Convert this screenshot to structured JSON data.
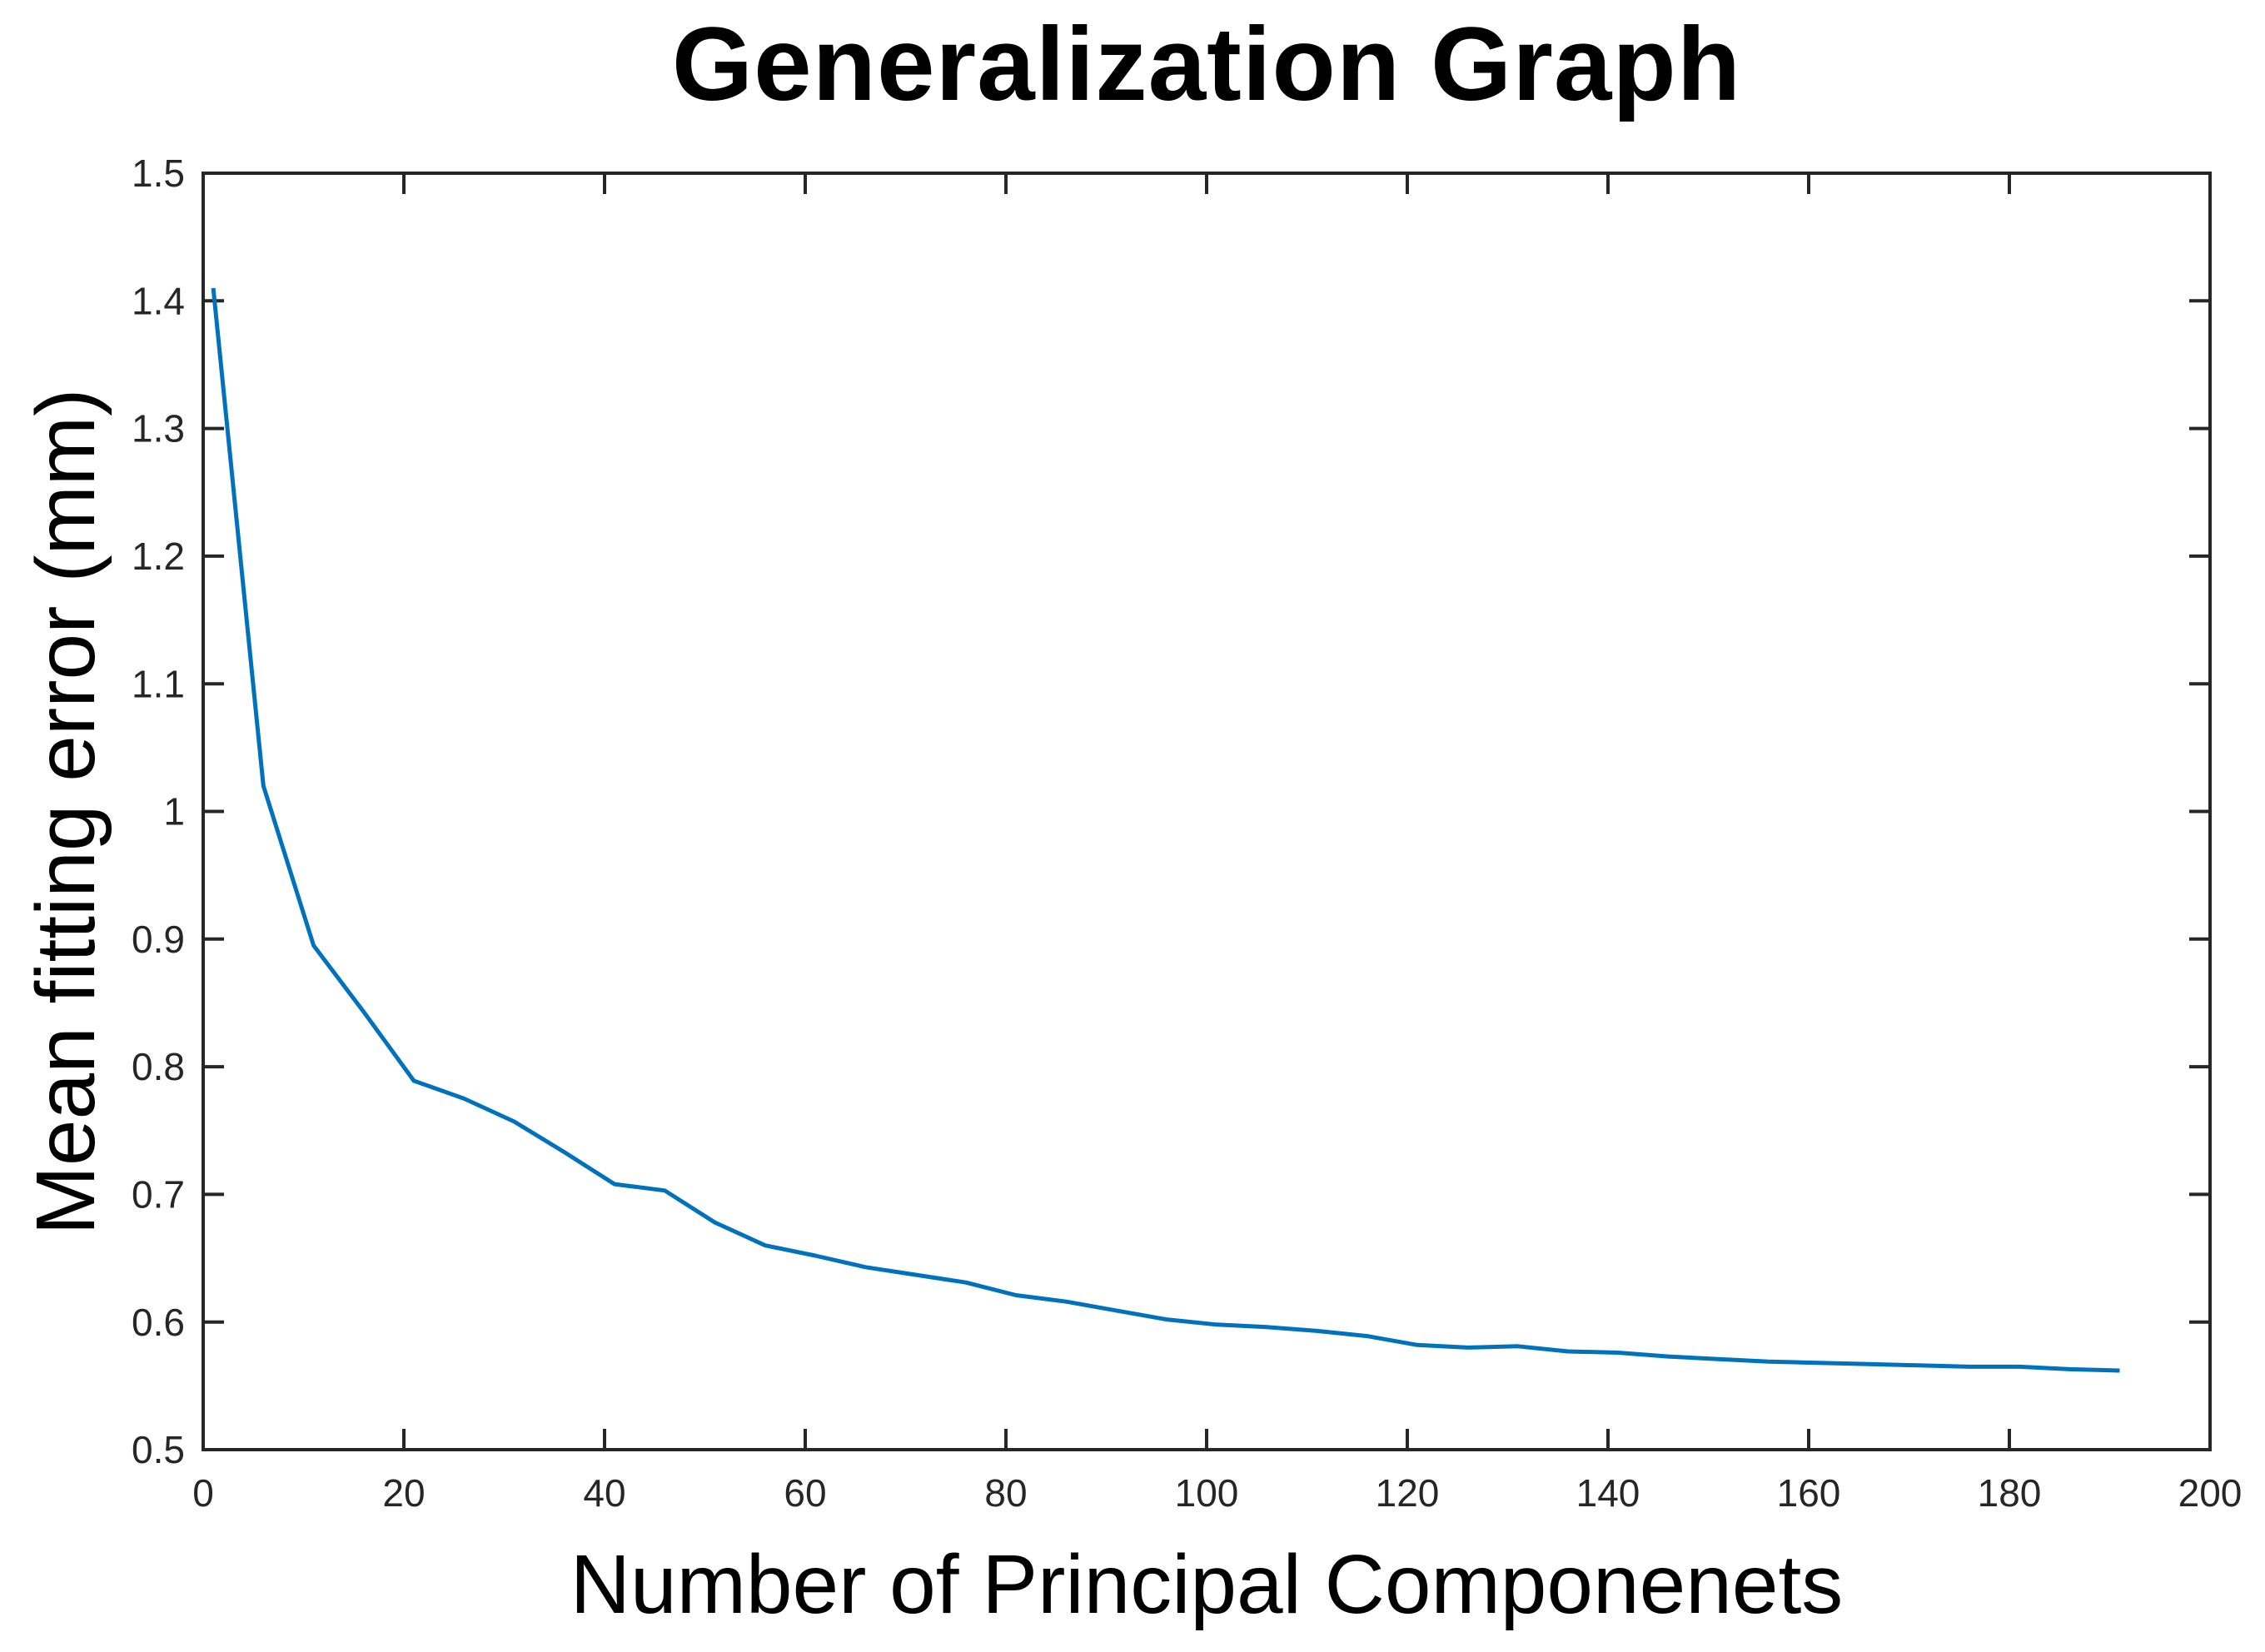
{
  "figure": {
    "background": "#ffffff"
  },
  "chart_data": {
    "type": "line",
    "title": "Generalization Graph",
    "xlabel": "Number of Principal Componenets",
    "ylabel": "Mean fitting error (mm)",
    "xlim": [
      0,
      200
    ],
    "ylim": [
      0.5,
      1.5
    ],
    "xticks": [
      0,
      20,
      40,
      60,
      80,
      100,
      120,
      140,
      160,
      180,
      200
    ],
    "xtick_labels": [
      "0",
      "20",
      "40",
      "60",
      "80",
      "100",
      "120",
      "140",
      "160",
      "180",
      "200"
    ],
    "yticks": [
      0.5,
      0.6,
      0.7,
      0.8,
      0.9,
      1.0,
      1.1,
      1.2,
      1.3,
      1.4,
      1.5
    ],
    "ytick_labels": [
      "0.5",
      "0.6",
      "0.7",
      "0.8",
      "0.9",
      "1",
      "1.1",
      "1.2",
      "1.3",
      "1.4",
      "1.5"
    ],
    "grid": false,
    "legend": null,
    "line_color": "#0072bd",
    "axis_color": "#262626",
    "series": [
      {
        "name": "mean fitting error",
        "x": [
          1,
          6,
          11,
          16,
          21,
          26,
          31,
          36,
          41,
          46,
          51,
          56,
          61,
          66,
          71,
          76,
          81,
          86,
          91,
          96,
          101,
          106,
          111,
          116,
          121,
          126,
          131,
          136,
          141,
          146,
          151,
          156,
          161,
          166,
          171,
          176,
          181,
          186,
          191
        ],
        "y": [
          1.41,
          1.02,
          0.895,
          0.843,
          0.789,
          0.775,
          0.757,
          0.733,
          0.708,
          0.703,
          0.678,
          0.66,
          0.652,
          0.643,
          0.637,
          0.631,
          0.621,
          0.616,
          0.609,
          0.602,
          0.598,
          0.596,
          0.593,
          0.589,
          0.582,
          0.58,
          0.581,
          0.577,
          0.576,
          0.573,
          0.571,
          0.569,
          0.568,
          0.567,
          0.566,
          0.565,
          0.565,
          0.563,
          0.562
        ]
      }
    ]
  }
}
